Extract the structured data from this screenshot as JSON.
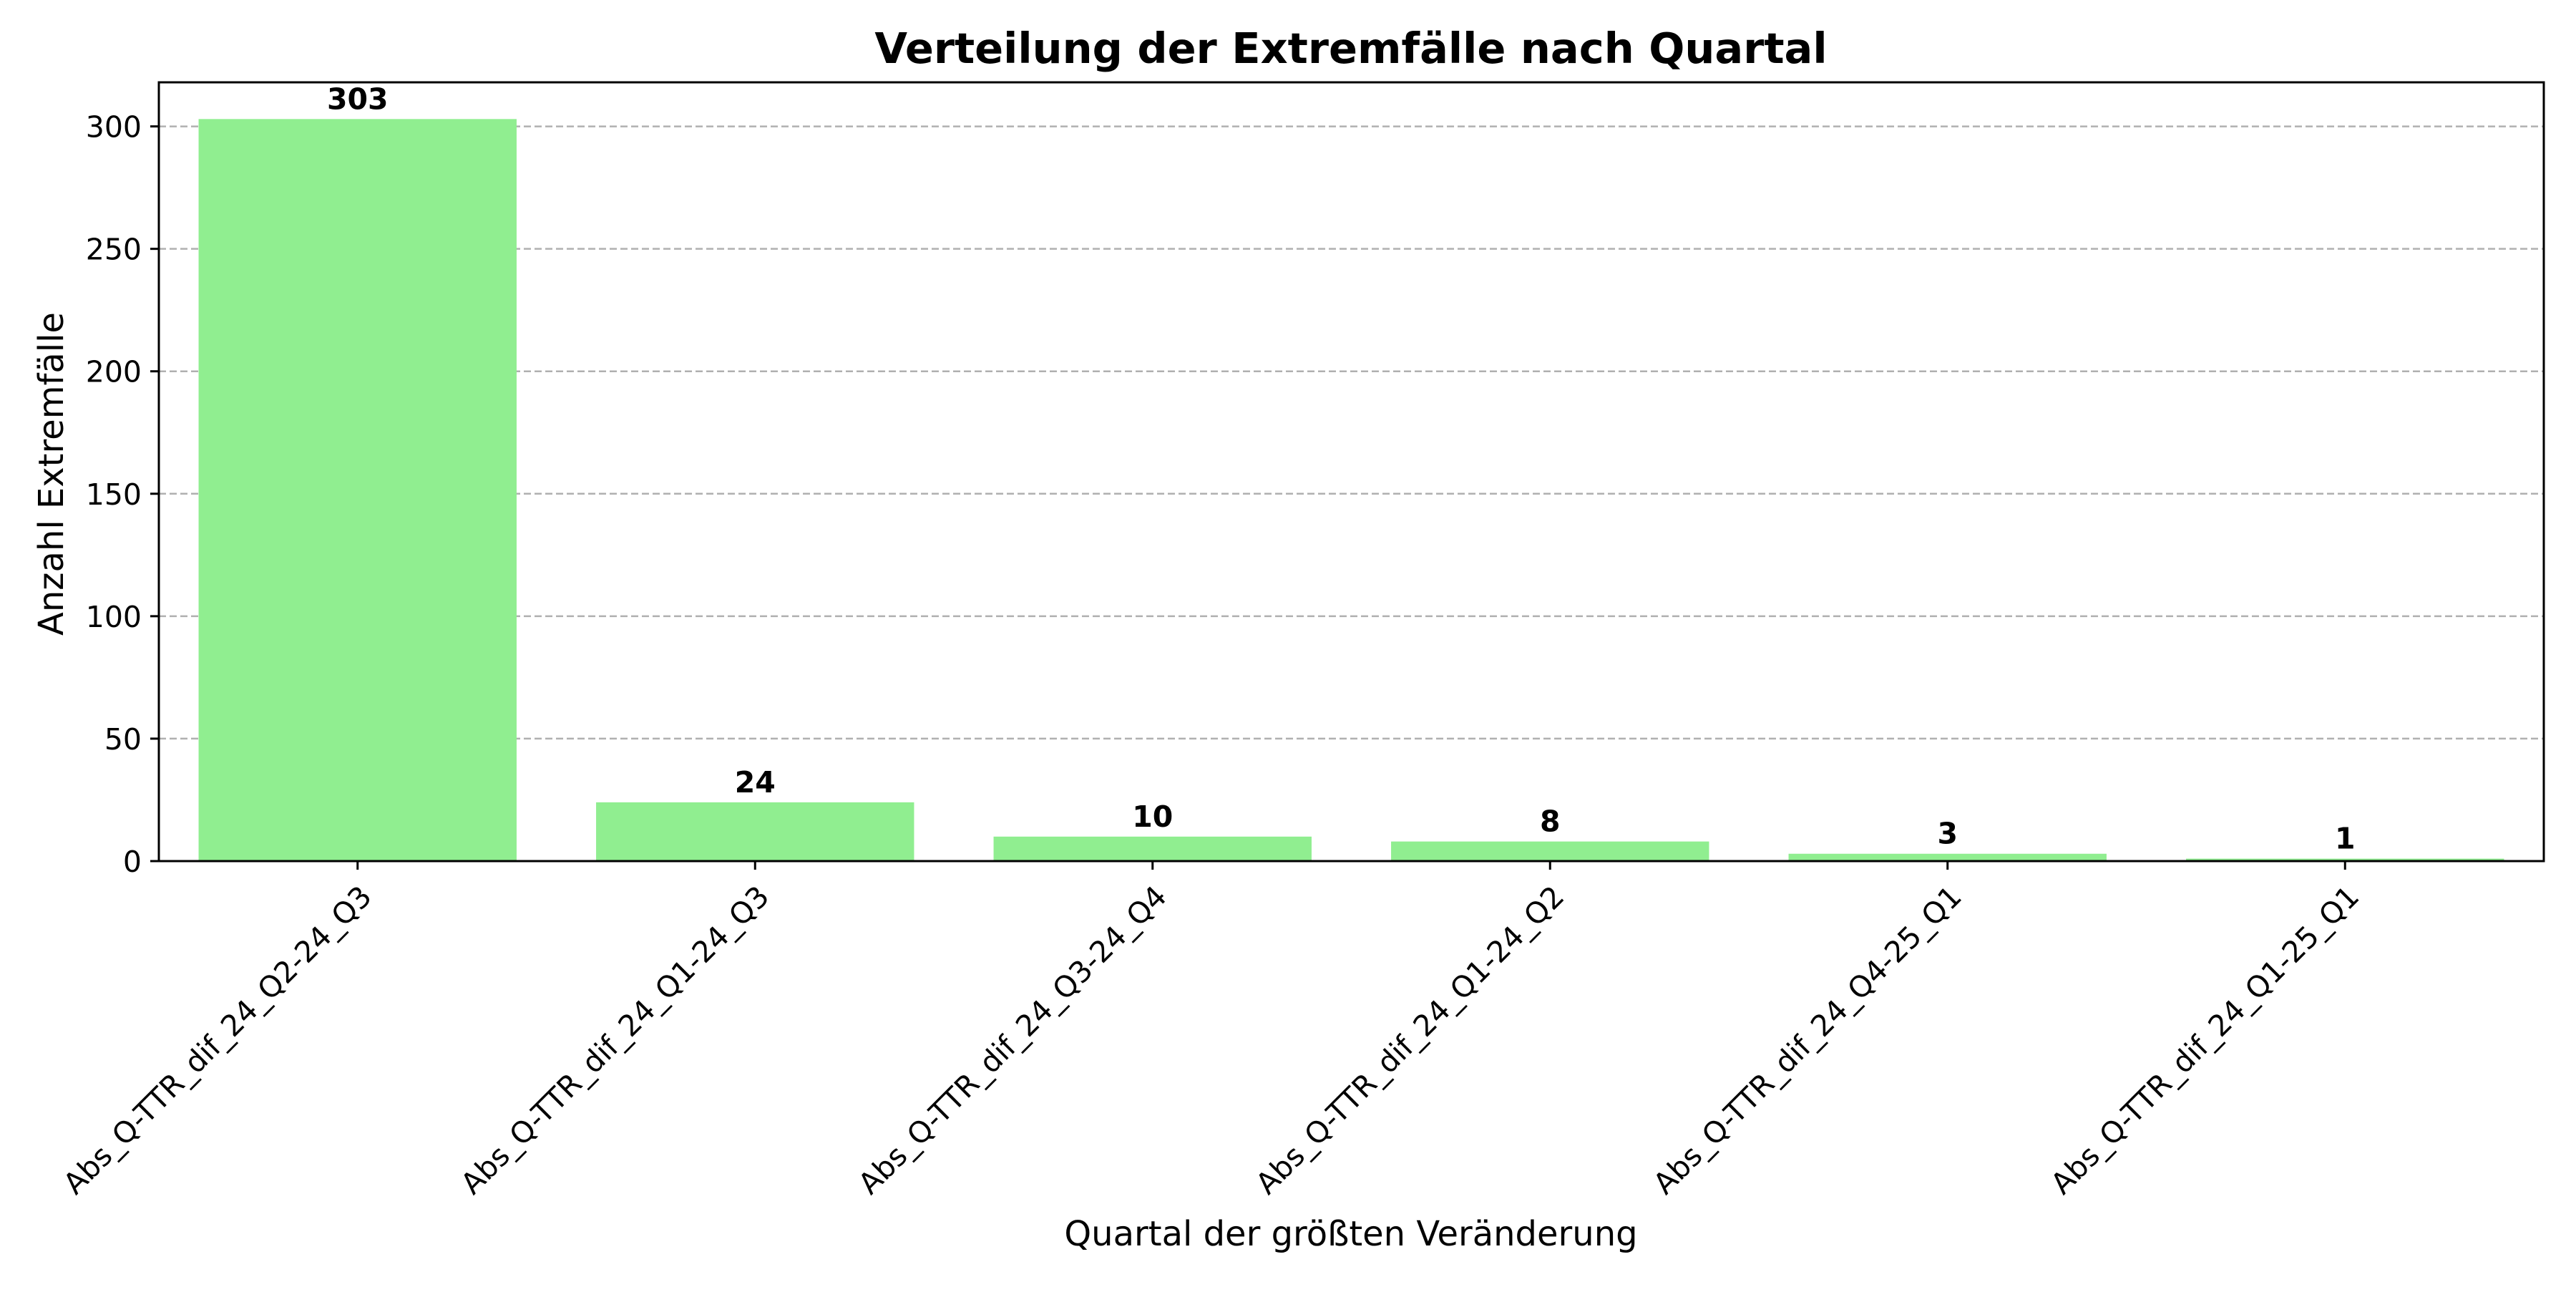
{
  "chart_data": {
    "type": "bar",
    "title": "Verteilung der Extremfälle nach Quartal",
    "xlabel": "Quartal der größten Veränderung",
    "ylabel": "Anzahl Extremfälle",
    "categories": [
      "Abs_Q-TTR_dif_24_Q2-24_Q3",
      "Abs_Q-TTR_dif_24_Q1-24_Q3",
      "Abs_Q-TTR_dif_24_Q3-24_Q4",
      "Abs_Q-TTR_dif_24_Q1-24_Q2",
      "Abs_Q-TTR_dif_24_Q4-25_Q1",
      "Abs_Q-TTR_dif_24_Q1-25_Q1"
    ],
    "values": [
      303,
      24,
      10,
      8,
      3,
      1
    ],
    "ylim": [
      0,
      318
    ],
    "yticks": [
      0,
      50,
      100,
      150,
      200,
      250,
      300
    ],
    "grid": "y-dashed",
    "legend": "none",
    "colors": {
      "bar": "#90ee90",
      "grid": "#b0b0b0",
      "axis": "#000000"
    }
  }
}
